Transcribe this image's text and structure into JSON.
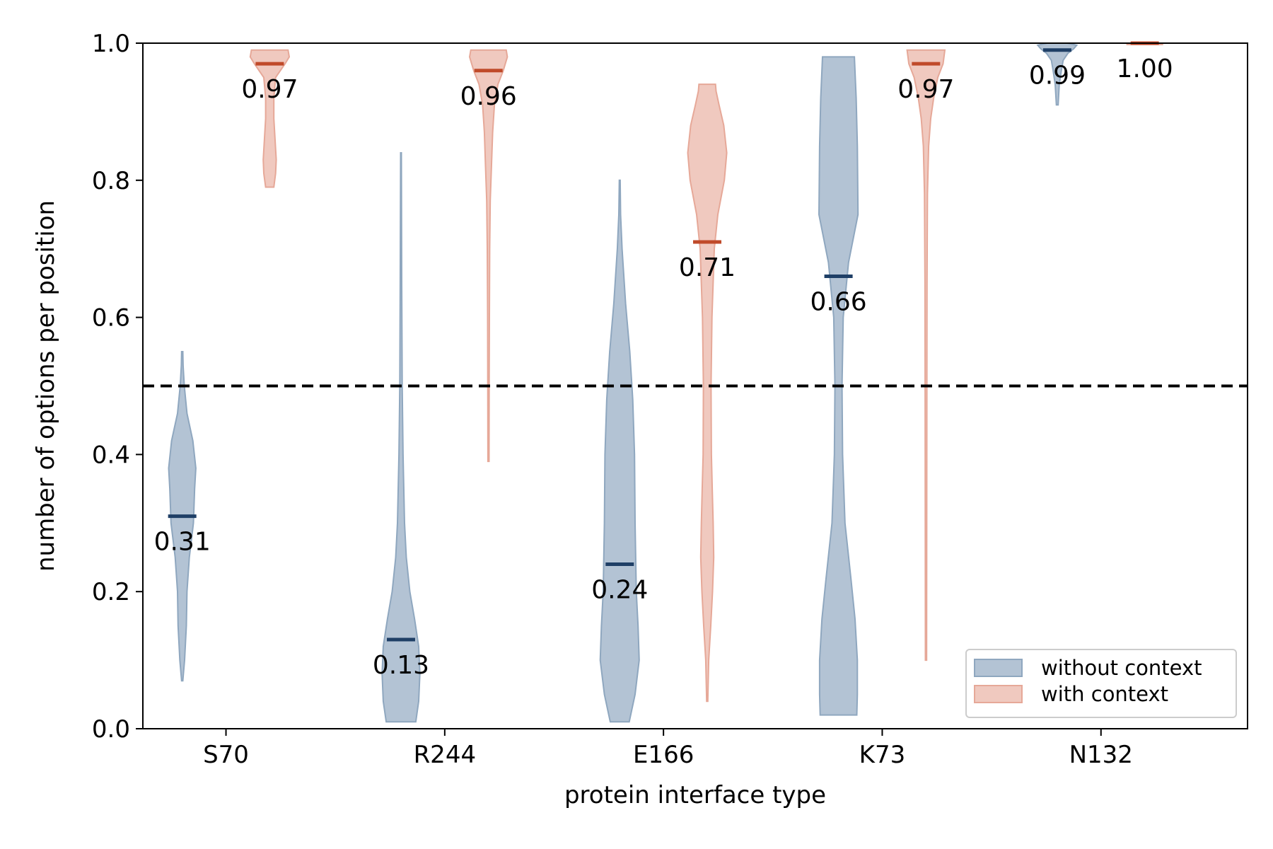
{
  "chart_data": {
    "type": "violin",
    "xlabel": "protein interface type",
    "ylabel": "number of options per position",
    "ylim": [
      0.0,
      1.0
    ],
    "yticks": [
      "0.0",
      "0.2",
      "0.4",
      "0.6",
      "0.8",
      "1.0"
    ],
    "ytick_values": [
      0.0,
      0.2,
      0.4,
      0.6,
      0.8,
      1.0
    ],
    "categories": [
      "S70",
      "R244",
      "E166",
      "K73",
      "N132"
    ],
    "reference_line": 0.5,
    "legend_position": "lower-right",
    "series": [
      {
        "name": "without context",
        "color": "#8fa7bf",
        "median_color": "#1f3f66",
        "medians": [
          0.31,
          0.13,
          0.24,
          0.66,
          0.99
        ],
        "median_labels": [
          "0.31",
          "0.13",
          "0.24",
          "0.66",
          "0.99"
        ],
        "ranges": [
          [
            0.07,
            0.55
          ],
          [
            0.01,
            0.84
          ],
          [
            0.01,
            0.8
          ],
          [
            0.02,
            0.98
          ],
          [
            0.91,
            1.0
          ]
        ],
        "profiles": [
          [
            [
              0.07,
              0.02
            ],
            [
              0.1,
              0.08
            ],
            [
              0.15,
              0.14
            ],
            [
              0.2,
              0.16
            ],
            [
              0.25,
              0.24
            ],
            [
              0.3,
              0.38
            ],
            [
              0.35,
              0.42
            ],
            [
              0.38,
              0.46
            ],
            [
              0.42,
              0.36
            ],
            [
              0.46,
              0.16
            ],
            [
              0.5,
              0.07
            ],
            [
              0.53,
              0.03
            ],
            [
              0.55,
              0.02
            ]
          ],
          [
            [
              0.01,
              0.5
            ],
            [
              0.04,
              0.6
            ],
            [
              0.08,
              0.64
            ],
            [
              0.12,
              0.6
            ],
            [
              0.16,
              0.46
            ],
            [
              0.2,
              0.3
            ],
            [
              0.25,
              0.18
            ],
            [
              0.3,
              0.12
            ],
            [
              0.4,
              0.07
            ],
            [
              0.5,
              0.04
            ],
            [
              0.65,
              0.025
            ],
            [
              0.84,
              0.012
            ]
          ],
          [
            [
              0.01,
              0.32
            ],
            [
              0.05,
              0.52
            ],
            [
              0.1,
              0.66
            ],
            [
              0.15,
              0.62
            ],
            [
              0.2,
              0.56
            ],
            [
              0.3,
              0.52
            ],
            [
              0.4,
              0.5
            ],
            [
              0.48,
              0.44
            ],
            [
              0.55,
              0.34
            ],
            [
              0.62,
              0.2
            ],
            [
              0.7,
              0.08
            ],
            [
              0.75,
              0.03
            ],
            [
              0.8,
              0.015
            ]
          ],
          [
            [
              0.02,
              0.62
            ],
            [
              0.05,
              0.64
            ],
            [
              0.1,
              0.64
            ],
            [
              0.16,
              0.56
            ],
            [
              0.22,
              0.42
            ],
            [
              0.3,
              0.22
            ],
            [
              0.4,
              0.14
            ],
            [
              0.5,
              0.12
            ],
            [
              0.6,
              0.16
            ],
            [
              0.68,
              0.34
            ],
            [
              0.75,
              0.66
            ],
            [
              0.85,
              0.64
            ],
            [
              0.92,
              0.6
            ],
            [
              0.98,
              0.54
            ]
          ],
          [
            [
              0.91,
              0.03
            ],
            [
              0.94,
              0.07
            ],
            [
              0.96,
              0.14
            ],
            [
              0.975,
              0.2
            ],
            [
              0.985,
              0.36
            ],
            [
              0.992,
              0.56
            ],
            [
              0.997,
              0.66
            ],
            [
              1.0,
              0.34
            ]
          ]
        ]
      },
      {
        "name": "with context",
        "color": "#e6a898",
        "median_color": "#c04a2a",
        "medians": [
          0.97,
          0.96,
          0.71,
          0.97,
          1.0
        ],
        "median_labels": [
          "0.97",
          "0.96",
          "0.71",
          "0.97",
          "1.00"
        ],
        "ranges": [
          [
            0.79,
            0.99
          ],
          [
            0.39,
            0.99
          ],
          [
            0.04,
            0.94
          ],
          [
            0.1,
            0.99
          ],
          [
            1.0,
            1.0
          ]
        ],
        "profiles": [
          [
            [
              0.79,
              0.14
            ],
            [
              0.81,
              0.2
            ],
            [
              0.83,
              0.22
            ],
            [
              0.86,
              0.18
            ],
            [
              0.89,
              0.14
            ],
            [
              0.92,
              0.14
            ],
            [
              0.95,
              0.2
            ],
            [
              0.97,
              0.52
            ],
            [
              0.98,
              0.66
            ],
            [
              0.99,
              0.62
            ]
          ],
          [
            [
              0.39,
              0.02
            ],
            [
              0.5,
              0.025
            ],
            [
              0.6,
              0.03
            ],
            [
              0.7,
              0.04
            ],
            [
              0.77,
              0.06
            ],
            [
              0.82,
              0.1
            ],
            [
              0.87,
              0.14
            ],
            [
              0.91,
              0.2
            ],
            [
              0.94,
              0.32
            ],
            [
              0.96,
              0.5
            ],
            [
              0.98,
              0.64
            ],
            [
              0.99,
              0.6
            ]
          ],
          [
            [
              0.04,
              0.02
            ],
            [
              0.1,
              0.05
            ],
            [
              0.15,
              0.12
            ],
            [
              0.2,
              0.18
            ],
            [
              0.25,
              0.22
            ],
            [
              0.3,
              0.2
            ],
            [
              0.35,
              0.17
            ],
            [
              0.4,
              0.14
            ],
            [
              0.5,
              0.13
            ],
            [
              0.6,
              0.16
            ],
            [
              0.7,
              0.24
            ],
            [
              0.75,
              0.36
            ],
            [
              0.8,
              0.58
            ],
            [
              0.84,
              0.66
            ],
            [
              0.88,
              0.56
            ],
            [
              0.91,
              0.4
            ],
            [
              0.93,
              0.3
            ],
            [
              0.94,
              0.28
            ]
          ],
          [
            [
              0.1,
              0.02
            ],
            [
              0.3,
              0.025
            ],
            [
              0.5,
              0.03
            ],
            [
              0.65,
              0.035
            ],
            [
              0.78,
              0.05
            ],
            [
              0.85,
              0.09
            ],
            [
              0.89,
              0.16
            ],
            [
              0.92,
              0.26
            ],
            [
              0.95,
              0.4
            ],
            [
              0.97,
              0.58
            ],
            [
              0.99,
              0.64
            ]
          ],
          [
            [
              0.998,
              0.6
            ],
            [
              1.0,
              0.6
            ]
          ]
        ]
      }
    ],
    "legend": [
      "without context",
      "with context"
    ]
  }
}
